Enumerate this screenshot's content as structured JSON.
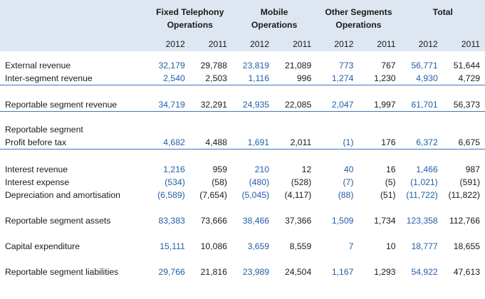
{
  "header": {
    "groups": [
      {
        "line1": "Fixed Telephony",
        "line2": "Operations"
      },
      {
        "line1": "Mobile",
        "line2": "Operations"
      },
      {
        "line1": "Other Segments",
        "line2": "Operations"
      },
      {
        "line1": "Total",
        "line2": ""
      }
    ],
    "years": [
      "2012",
      "2011"
    ]
  },
  "colors": {
    "header_band": "#dde6f1",
    "value_2012": "#1f5fa6",
    "rule": "#3a78c0"
  },
  "rows": [
    {
      "label": "External revenue",
      "values": [
        "32,179",
        "29,788",
        "23,819",
        "21,089",
        "773",
        "767",
        "56,771",
        "51,644"
      ]
    },
    {
      "label": "Inter-segment revenue",
      "values": [
        "2,540",
        "2,503",
        "1,116",
        "996",
        "1,274",
        "1,230",
        "4,930",
        "4,729"
      ]
    },
    {
      "label": "Reportable segment revenue",
      "values": [
        "34,719",
        "32,291",
        "24,935",
        "22,085",
        "2,047",
        "1,997",
        "61,701",
        "56,373"
      ]
    },
    {
      "label": "Reportable segment",
      "values": [
        "",
        "",
        "",
        "",
        "",
        "",
        "",
        ""
      ]
    },
    {
      "label": "Profit before tax",
      "values": [
        "4,682",
        "4,488",
        "1,691",
        "2,011",
        "(1)",
        "176",
        "6,372",
        "6,675"
      ]
    },
    {
      "label": "Interest revenue",
      "values": [
        "1,216",
        "959",
        "210",
        "12",
        "40",
        "16",
        "1,466",
        "987"
      ]
    },
    {
      "label": "Interest expense",
      "values": [
        "(534)",
        "(58)",
        "(480)",
        "(528)",
        "(7)",
        "(5)",
        "(1,021)",
        "(591)"
      ]
    },
    {
      "label": "Depreciation and amortisation",
      "values": [
        "(6,589)",
        "(7,654)",
        "(5,045)",
        "(4,117)",
        "(88)",
        "(51)",
        "(11,722)",
        "(11,822)"
      ]
    },
    {
      "label": "Reportable segment assets",
      "values": [
        "83,383",
        "73,666",
        "38,466",
        "37,366",
        "1,509",
        "1,734",
        "123,358",
        "112,766"
      ]
    },
    {
      "label": "Capital expenditure",
      "values": [
        "15,111",
        "10,086",
        "3,659",
        "8,559",
        "7",
        "10",
        "18,777",
        "18,655"
      ]
    },
    {
      "label": "Reportable segment liabilities",
      "values": [
        "29,766",
        "21,816",
        "23,989",
        "24,504",
        "1,167",
        "1,293",
        "54,922",
        "47,613"
      ]
    }
  ]
}
